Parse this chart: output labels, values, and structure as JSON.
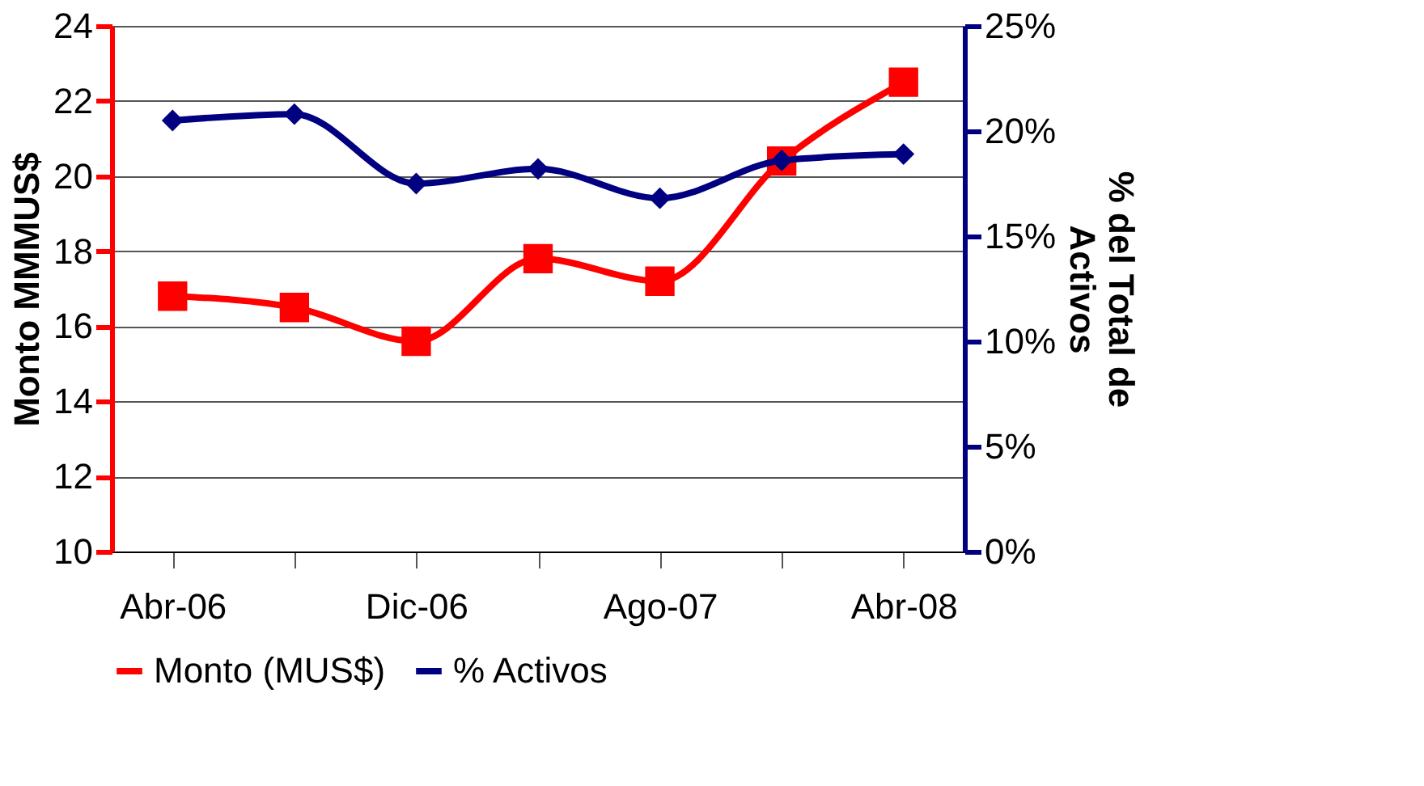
{
  "chart_data": {
    "type": "line",
    "ylabel": "Monto MMMUS$",
    "y2label": "% del Total de Activos",
    "categories": [
      "Abr-06",
      null,
      "Dic-06",
      null,
      "Ago-07",
      null,
      "Abr-08"
    ],
    "series": [
      {
        "name": "Monto (MUS$)",
        "color": "#ff0000",
        "marker": "square",
        "values": [
          16.8,
          16.5,
          15.6,
          17.8,
          17.2,
          20.4,
          22.5
        ]
      },
      {
        "name": "% Activos",
        "color": "#000080",
        "marker": "diamond",
        "axis": "y2",
        "values": [
          20.5,
          20.8,
          17.5,
          18.2,
          16.8,
          18.6,
          18.9
        ]
      }
    ],
    "ylim": [
      10,
      24
    ],
    "yticks": [
      10,
      12,
      14,
      16,
      18,
      20,
      22,
      24
    ],
    "y2lim": [
      0,
      25
    ],
    "y2ticks": [
      {
        "value": 0,
        "label": "0%"
      },
      {
        "value": 5,
        "label": "5%"
      },
      {
        "value": 10,
        "label": "10%"
      },
      {
        "value": 15,
        "label": "15%"
      },
      {
        "value": 20,
        "label": "20%"
      },
      {
        "value": 25,
        "label": "25%"
      }
    ],
    "grid": "y",
    "legend": "bottom",
    "line_style": "solid"
  }
}
